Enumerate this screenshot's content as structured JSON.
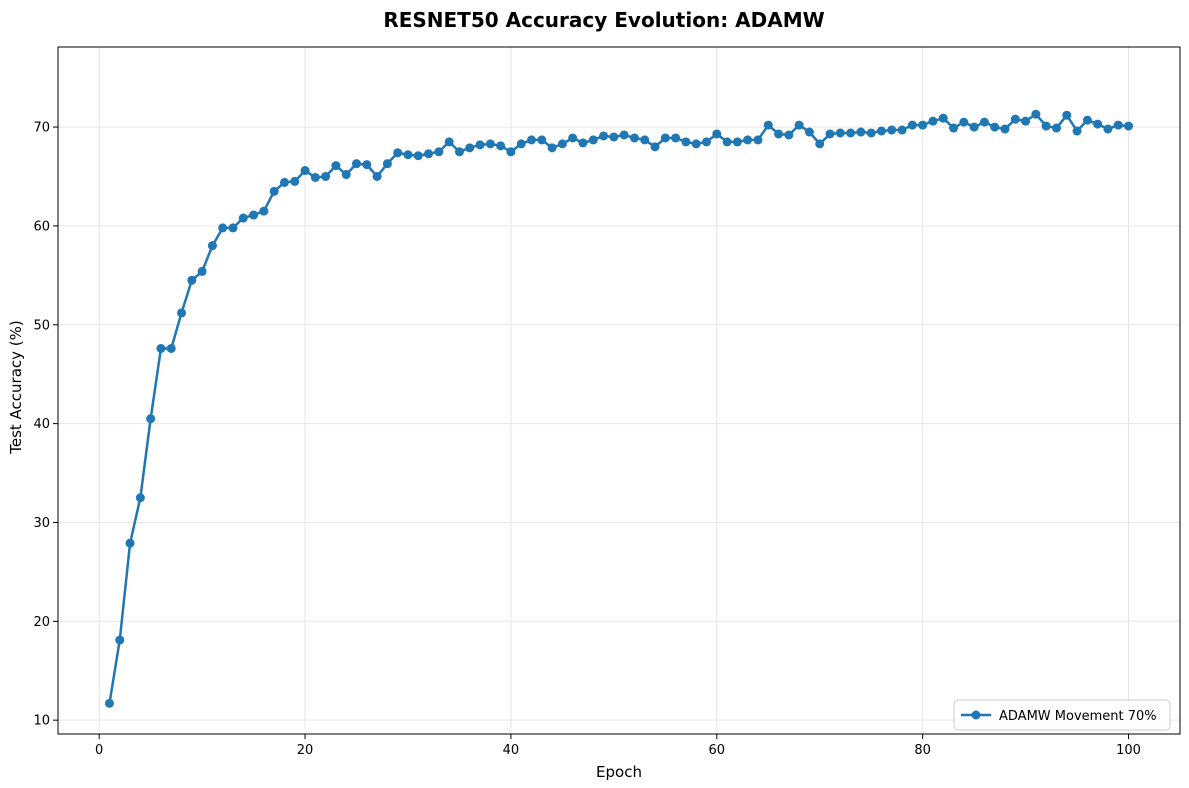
{
  "chart_data": {
    "type": "line",
    "title": "RESNET50 Accuracy Evolution: ADAMW",
    "xlabel": "Epoch",
    "ylabel": "Test Accuracy (%)",
    "xlim": [
      -4,
      105
    ],
    "ylim": [
      8.6,
      78.1
    ],
    "xticks": [
      0,
      20,
      40,
      60,
      80,
      100
    ],
    "yticks": [
      10,
      20,
      30,
      40,
      50,
      60,
      70
    ],
    "grid": true,
    "legend_position": "lower-right",
    "colors": {
      "series": "#1f77b4",
      "grid": "#e6e6e6",
      "frame": "#000000",
      "legend_border": "#cccccc"
    },
    "series": [
      {
        "name": "ADAMW Movement 70%",
        "x": [
          1,
          2,
          3,
          4,
          5,
          6,
          7,
          8,
          9,
          10,
          11,
          12,
          13,
          14,
          15,
          16,
          17,
          18,
          19,
          20,
          21,
          22,
          23,
          24,
          25,
          26,
          27,
          28,
          29,
          30,
          31,
          32,
          33,
          34,
          35,
          36,
          37,
          38,
          39,
          40,
          41,
          42,
          43,
          44,
          45,
          46,
          47,
          48,
          49,
          50,
          51,
          52,
          53,
          54,
          55,
          56,
          57,
          58,
          59,
          60,
          61,
          62,
          63,
          64,
          65,
          66,
          67,
          68,
          69,
          70,
          71,
          72,
          73,
          74,
          75,
          76,
          77,
          78,
          79,
          80,
          81,
          82,
          83,
          84,
          85,
          86,
          87,
          88,
          89,
          90,
          91,
          92,
          93,
          94,
          95,
          96,
          97,
          98,
          99,
          100
        ],
        "values": [
          11.7,
          18.1,
          27.9,
          32.5,
          40.5,
          47.6,
          47.6,
          51.2,
          54.5,
          55.4,
          58.0,
          59.8,
          59.8,
          60.8,
          61.1,
          61.5,
          63.5,
          64.4,
          64.5,
          65.6,
          64.9,
          65.0,
          66.1,
          65.2,
          66.3,
          66.2,
          65.0,
          66.3,
          67.4,
          67.2,
          67.1,
          67.3,
          67.5,
          68.5,
          67.5,
          67.9,
          68.2,
          68.3,
          68.1,
          67.5,
          68.3,
          68.7,
          68.7,
          67.9,
          68.3,
          68.9,
          68.4,
          68.7,
          69.1,
          69.0,
          69.2,
          68.9,
          68.7,
          68.0,
          68.9,
          68.9,
          68.5,
          68.3,
          68.5,
          69.3,
          68.5,
          68.5,
          68.7,
          68.7,
          70.2,
          69.3,
          69.2,
          70.2,
          69.5,
          68.3,
          69.3,
          69.4,
          69.4,
          69.5,
          69.4,
          69.6,
          69.7,
          69.7,
          70.2,
          70.2,
          70.6,
          70.9,
          69.9,
          70.5,
          70.0,
          70.5,
          70.0,
          69.8,
          70.8,
          70.6,
          71.3,
          70.1,
          69.9,
          71.2,
          69.6,
          70.7,
          70.3,
          69.8,
          70.2,
          70.1
        ]
      }
    ]
  }
}
